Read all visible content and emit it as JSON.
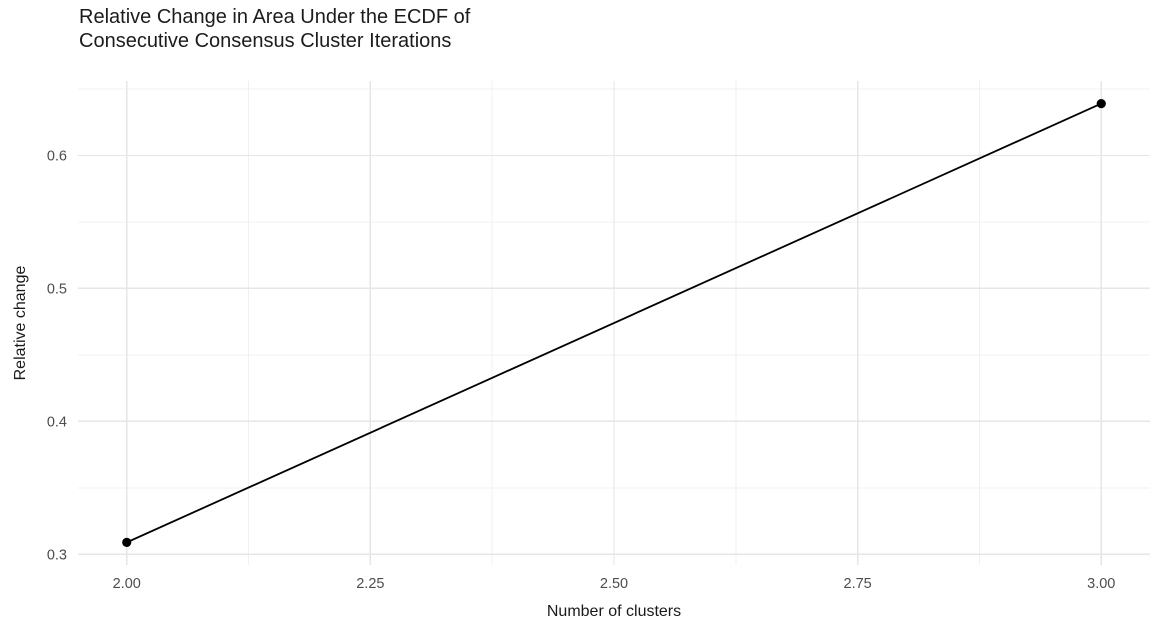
{
  "chart_data": {
    "type": "line",
    "title": "Relative Change in Area Under the ECDF of Consecutive Consensus Cluster Iterations",
    "title_lines": [
      "Relative Change in Area Under the ECDF of",
      "Consecutive Consensus Cluster Iterations"
    ],
    "xlabel": "Number of clusters",
    "ylabel": "Relative change",
    "series": [
      {
        "name": "Relative change",
        "points": [
          {
            "x": 2.0,
            "y": 0.309
          },
          {
            "x": 3.0,
            "y": 0.639
          }
        ]
      }
    ],
    "xlim": [
      1.95,
      3.05
    ],
    "ylim": [
      0.292,
      0.656
    ],
    "x_ticks": {
      "values": [
        2.0,
        2.25,
        2.5,
        2.75,
        3.0
      ],
      "labels": [
        "2.00",
        "2.25",
        "2.50",
        "2.75",
        "3.00"
      ]
    },
    "y_ticks": {
      "values": [
        0.3,
        0.4,
        0.5,
        0.6
      ],
      "labels": [
        "0.3",
        "0.4",
        "0.5",
        "0.6"
      ]
    },
    "x_minor_gridlines": [
      2.125,
      2.375,
      2.625,
      2.875
    ],
    "y_minor_gridlines": [
      0.35,
      0.45,
      0.55,
      0.65
    ],
    "grid": "on",
    "legend": "none",
    "style": {
      "background": "#ffffff",
      "grid_major_color": "#e6e6e6",
      "grid_minor_color": "#f0f0f0",
      "line_color": "#000000",
      "point_color": "#000000",
      "tick_label_color": "#4d4d4d",
      "title_color": "#1c1c1c",
      "axis_title_color": "#1a1a1a"
    }
  }
}
